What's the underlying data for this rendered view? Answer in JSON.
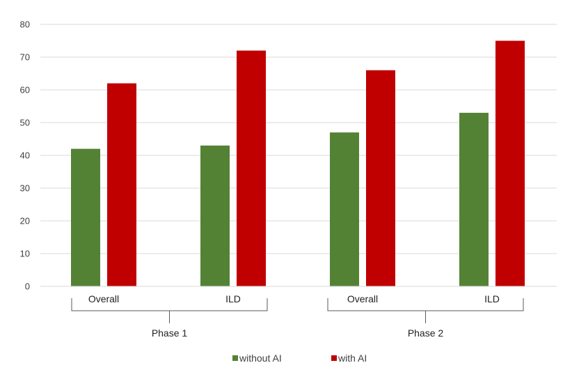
{
  "chart_data": {
    "type": "bar",
    "title": "",
    "xlabel": "",
    "ylabel": "",
    "ylim": [
      0,
      80
    ],
    "y_ticks": [
      0,
      10,
      20,
      30,
      40,
      50,
      60,
      70,
      80
    ],
    "grid": true,
    "legend_position": "bottom",
    "groups": [
      {
        "label": "Phase 1",
        "categories": [
          "Overall",
          "ILD"
        ]
      },
      {
        "label": "Phase 2",
        "categories": [
          "Overall",
          "ILD"
        ]
      }
    ],
    "categories": [
      "Overall",
      "ILD",
      "Overall",
      "ILD"
    ],
    "series": [
      {
        "name": "without AI",
        "color": "#548235",
        "values": [
          42,
          43,
          47,
          53
        ]
      },
      {
        "name": "with AI",
        "color": "#C00000",
        "values": [
          62,
          72,
          66,
          75
        ]
      }
    ]
  }
}
